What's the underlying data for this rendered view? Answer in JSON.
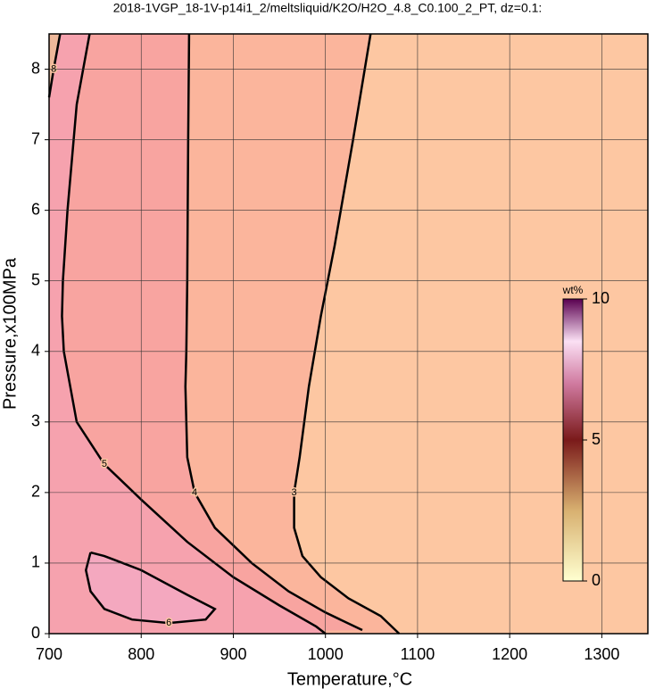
{
  "chart_data": {
    "type": "contour",
    "title": "2018-1VGP_18-1V-p14i1_2/meltsliquid/K2O/H2O_4.8_C0.100_2_PT, dz=0.1:",
    "xlabel": "Temperature,°C",
    "ylabel": "Pressure,x100MPa",
    "xlim": [
      700,
      1350
    ],
    "xticks": [
      700,
      800,
      900,
      1000,
      1100,
      1200,
      1300
    ],
    "ylim": [
      0,
      8.5
    ],
    "yticks": [
      0,
      1,
      2,
      3,
      4,
      5,
      6,
      7,
      8
    ],
    "grid": true,
    "contours": [
      {
        "level": 3,
        "x": [
          1049,
          1030,
          1010,
          995,
          982,
          972,
          966,
          966,
          975,
          995,
          1025,
          1060,
          1080
        ],
        "y": [
          8.5,
          7,
          5.5,
          4.5,
          3.5,
          2.5,
          2,
          1.5,
          1.1,
          0.8,
          0.5,
          0.25,
          0
        ]
      },
      {
        "level": 4,
        "x": [
          852,
          851,
          850,
          849,
          848,
          850,
          858,
          880,
          920,
          960,
          1000,
          1040
        ],
        "y": [
          8.5,
          7,
          5,
          4,
          3.5,
          2.5,
          2,
          1.5,
          1,
          0.6,
          0.3,
          0.05
        ]
      },
      {
        "level": 5,
        "x": [
          744,
          730,
          720,
          715,
          714,
          716,
          730,
          760,
          800,
          850,
          900,
          950,
          990,
          1000
        ],
        "y": [
          8.5,
          7.5,
          6,
          5,
          4.5,
          4,
          3,
          2.4,
          1.9,
          1.3,
          0.8,
          0.4,
          0.1,
          0
        ]
      },
      {
        "level": 6,
        "x": [
          745,
          760,
          800,
          850,
          880,
          870,
          830,
          790,
          760,
          745,
          740,
          745
        ],
        "y": [
          1.15,
          1.1,
          0.9,
          0.55,
          0.35,
          0.2,
          0.15,
          0.2,
          0.35,
          0.6,
          0.9,
          1.15
        ]
      },
      {
        "level": 8,
        "x": [
          712,
          705,
          700
        ],
        "y": [
          8.5,
          8,
          7.6
        ]
      }
    ],
    "colorbar": {
      "label": "wt%",
      "lim": [
        0,
        10
      ],
      "ticks": [
        0,
        5,
        10
      ]
    }
  }
}
